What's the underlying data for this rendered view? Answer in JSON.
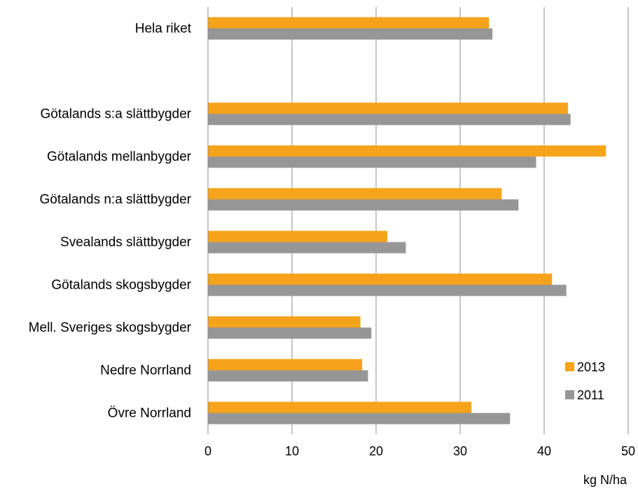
{
  "chart_data": {
    "type": "bar",
    "orientation": "horizontal",
    "categories": [
      "Hela riket",
      "",
      "Götalands s:a slättbygder",
      "Götalands mellanbygder",
      "Götalands n:a slättbygder",
      "Svealands slättbygder",
      "Götalands skogsbygder",
      "Mell. Sveriges skogsbygder",
      "Nedre Norrland",
      "Övre Norrland"
    ],
    "series": [
      {
        "name": "2013",
        "color": "#f5a31a",
        "values": [
          33.4,
          null,
          42.8,
          47.3,
          34.9,
          21.3,
          40.9,
          18.1,
          18.3,
          31.3
        ]
      },
      {
        "name": "2011",
        "color": "#969696",
        "values": [
          33.8,
          null,
          43.1,
          39.0,
          36.9,
          23.5,
          42.6,
          19.4,
          19.0,
          35.9
        ]
      }
    ],
    "xlim": [
      0,
      50
    ],
    "xticks": [
      "0",
      "10",
      "20",
      "30",
      "40",
      "50"
    ],
    "xlabel": "kg N/ha",
    "grid": true,
    "legend": "bottom-right"
  }
}
